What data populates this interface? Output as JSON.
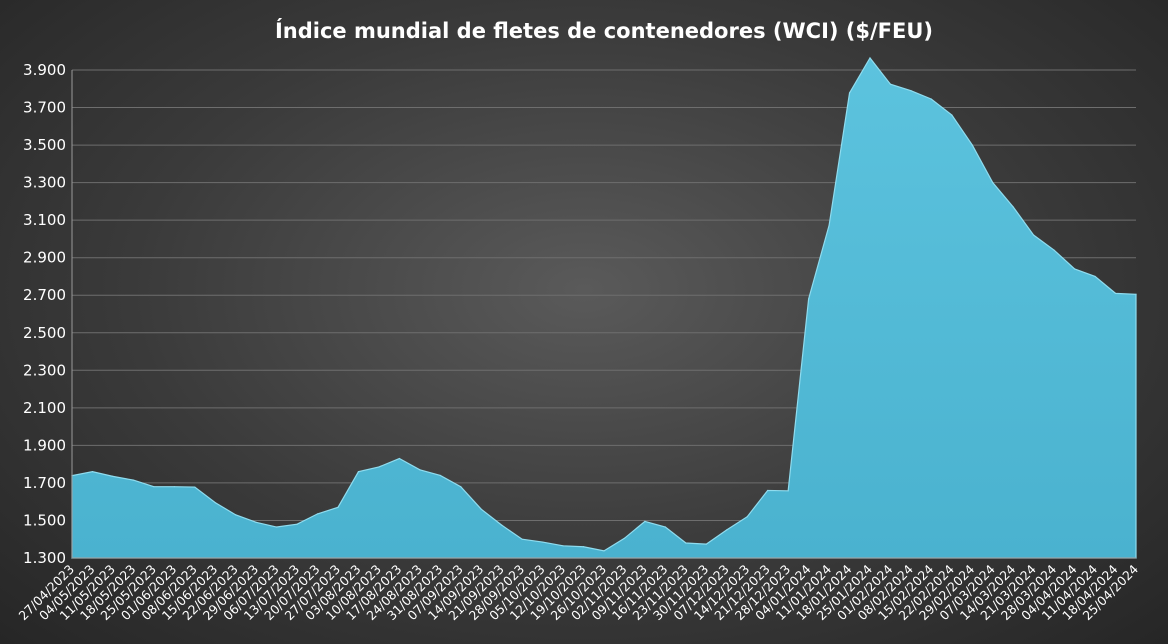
{
  "chart_data": {
    "type": "area",
    "title": "Índice mundial de fletes de contenedores (WCI) ($/FEU)",
    "xlabel": "",
    "ylabel": "",
    "ylim": [
      1300,
      3900
    ],
    "y_ticks": [
      1300,
      1500,
      1700,
      1900,
      2100,
      2300,
      2500,
      2700,
      2900,
      3100,
      3300,
      3500,
      3700,
      3900
    ],
    "y_tick_labels": [
      "1.300",
      "1.500",
      "1.700",
      "1.900",
      "2.100",
      "2.300",
      "2.500",
      "2.700",
      "2.900",
      "3.100",
      "3.300",
      "3.500",
      "3.700",
      "3.900"
    ],
    "grid": true,
    "legend": "none",
    "color": "#4fb8d4",
    "x_tick_labels": [
      "27/04/2023",
      "04/05/2023",
      "11/05/2023",
      "18/05/2023",
      "25/05/2023",
      "01/06/2023",
      "08/06/2023",
      "15/06/2023",
      "22/06/2023",
      "29/06/2023",
      "06/07/2023",
      "13/07/2023",
      "20/07/2023",
      "27/07/2023",
      "03/08/2023",
      "10/08/2023",
      "17/08/2023",
      "24/08/2023",
      "31/08/2023",
      "07/09/2023",
      "14/09/2023",
      "21/09/2023",
      "28/09/2023",
      "05/10/2023",
      "12/10/2023",
      "19/10/2023",
      "26/10/2023",
      "02/11/2023",
      "09/11/2023",
      "16/11/2023",
      "23/11/2023",
      "30/11/2023",
      "07/12/2023",
      "14/12/2023",
      "21/12/2023",
      "28/12/2023",
      "04/01/2024",
      "11/01/2024",
      "18/01/2024",
      "25/01/2024",
      "01/02/2024",
      "08/02/2024",
      "15/02/2024",
      "22/02/2024",
      "29/02/2024",
      "07/03/2024",
      "14/03/2024",
      "21/03/2024",
      "28/03/2024",
      "04/04/2024",
      "11/04/2024",
      "18/04/2024",
      "25/04/2024"
    ],
    "series": [
      {
        "values": [
          1739,
          1760,
          1735,
          1715,
          1680,
          1680,
          1678,
          1595,
          1530,
          1490,
          1465,
          1480,
          1535,
          1570,
          1760,
          1785,
          1830,
          1770,
          1740,
          1680,
          1560,
          1475,
          1400,
          1385,
          1365,
          1360,
          1338,
          1405,
          1495,
          1465,
          1380,
          1374,
          1450,
          1520,
          1660,
          1658,
          2680,
          3072,
          3778,
          3964,
          3824,
          3790,
          3745,
          3660,
          3500,
          3300,
          3170,
          3020,
          2940,
          2840,
          2800,
          2710,
          2705
        ]
      }
    ]
  }
}
